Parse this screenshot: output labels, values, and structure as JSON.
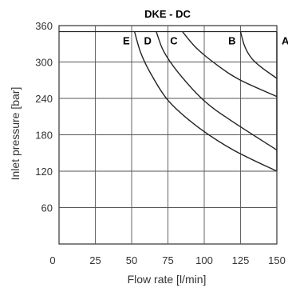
{
  "chart_data": {
    "type": "line",
    "title": "DKE - DC",
    "xlabel": "Flow rate [l/min]",
    "ylabel": "Inlet pressure [bar]",
    "xlim": [
      0,
      150
    ],
    "ylim": [
      0,
      360
    ],
    "xticks": [
      0,
      25,
      50,
      75,
      100,
      125,
      150
    ],
    "yticks": [
      60,
      120,
      180,
      240,
      300,
      360
    ],
    "grid": true,
    "reference_lines": [
      350
    ],
    "series": [
      {
        "name": "A",
        "points": [
          [
            150,
            350
          ],
          [
            150,
            120
          ]
        ]
      },
      {
        "name": "B",
        "points": [
          [
            125,
            350
          ],
          [
            128,
            325
          ],
          [
            133,
            305
          ],
          [
            140,
            290
          ],
          [
            150,
            273
          ]
        ]
      },
      {
        "name": "C",
        "points": [
          [
            85,
            350
          ],
          [
            95,
            322
          ],
          [
            110,
            293
          ],
          [
            125,
            270
          ],
          [
            150,
            243
          ]
        ]
      },
      {
        "name": "D",
        "points": [
          [
            67,
            350
          ],
          [
            72,
            318
          ],
          [
            82,
            283
          ],
          [
            100,
            236
          ],
          [
            120,
            201
          ],
          [
            150,
            155
          ]
        ]
      },
      {
        "name": "E",
        "points": [
          [
            52,
            350
          ],
          [
            56,
            317
          ],
          [
            62,
            286
          ],
          [
            75,
            237
          ],
          [
            95,
            194
          ],
          [
            120,
            155
          ],
          [
            150,
            120
          ]
        ]
      }
    ]
  }
}
